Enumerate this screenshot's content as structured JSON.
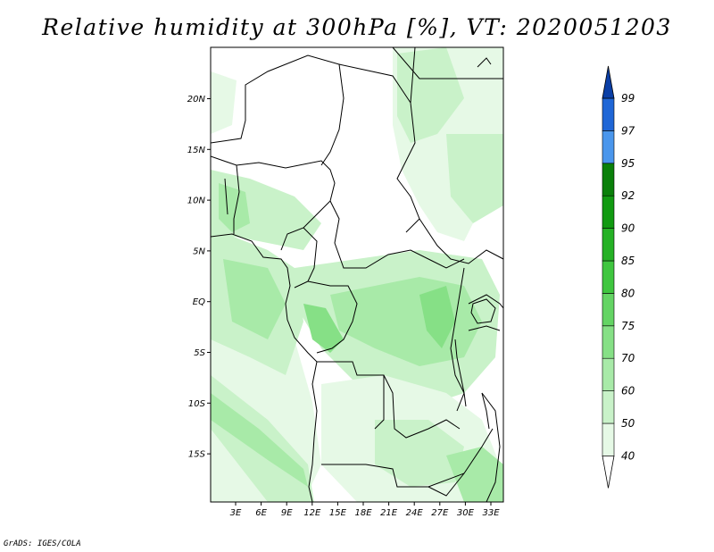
{
  "title": "Relative humidity at 300hPa [%], VT: 2020051203",
  "credit": "GrADS: IGES/COLA",
  "lat_labels": [
    "20N",
    "15N",
    "10N",
    "5N",
    "EQ",
    "5S",
    "10S",
    "15S"
  ],
  "lon_labels": [
    "3E",
    "6E",
    "9E",
    "12E",
    "15E",
    "18E",
    "21E",
    "24E",
    "27E",
    "30E",
    "33E"
  ],
  "colorbar": {
    "levels": [
      "40",
      "50",
      "60",
      "70",
      "75",
      "80",
      "85",
      "90",
      "92",
      "95",
      "97",
      "99"
    ],
    "colors": [
      "#ffffff",
      "#e6f9e6",
      "#c9f2c9",
      "#a8eaa8",
      "#86e086",
      "#64d464",
      "#3fc63f",
      "#25b125",
      "#119a11",
      "#0a800a",
      "#4a96ec",
      "#1f66d6",
      "#0b3fa6"
    ]
  },
  "map": {
    "lat_range": [
      -19,
      25
    ],
    "lon_range": [
      0,
      35
    ]
  }
}
